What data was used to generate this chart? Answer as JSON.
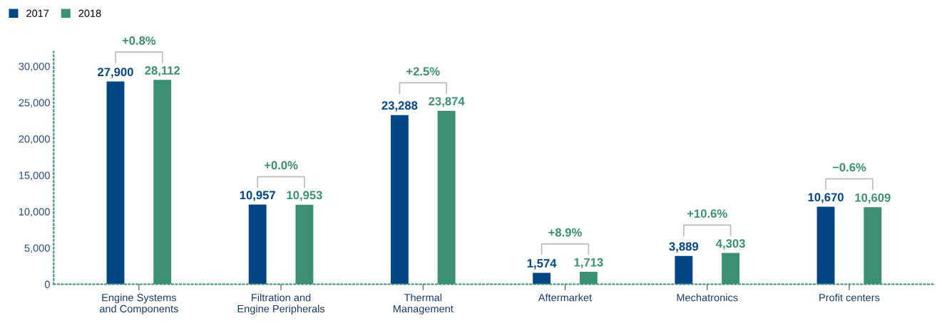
{
  "chart_data": {
    "type": "bar",
    "categories": [
      "Engine Systems\nand Components",
      "Filtration and\nEngine Peripherals",
      "Thermal\nManagement",
      "Aftermarket",
      "Mechatronics",
      "Profit centers"
    ],
    "series": [
      {
        "name": "2017",
        "color": "#004685",
        "values": [
          27900,
          10957,
          23288,
          1574,
          3889,
          10670
        ],
        "value_labels": [
          "27,900",
          "10,957",
          "23,288",
          "1,574",
          "3,889",
          "10,670"
        ]
      },
      {
        "name": "2018",
        "color": "#3a9070",
        "values": [
          28112,
          10953,
          23874,
          1713,
          4303,
          10609
        ],
        "value_labels": [
          "28,112",
          "10,953",
          "23,874",
          "1,713",
          "4,303",
          "10,609"
        ]
      }
    ],
    "annotations": [
      "+0.8%",
      "+0.0%",
      "+2.5%",
      "+8.9%",
      "+10.6%",
      "−0.6%"
    ],
    "ylim": [
      0,
      32000
    ],
    "yticks": [
      0,
      {
        "value": 5000,
        "label": "5,000"
      },
      {
        "value": 10000,
        "label": "10,000"
      },
      {
        "value": 15000,
        "label": "15,000"
      },
      {
        "value": 20000,
        "label": "20,000"
      },
      {
        "value": 25000,
        "label": "25,000"
      },
      {
        "value": 30000,
        "label": "30,000"
      }
    ],
    "grid": false,
    "legend": "top left"
  }
}
